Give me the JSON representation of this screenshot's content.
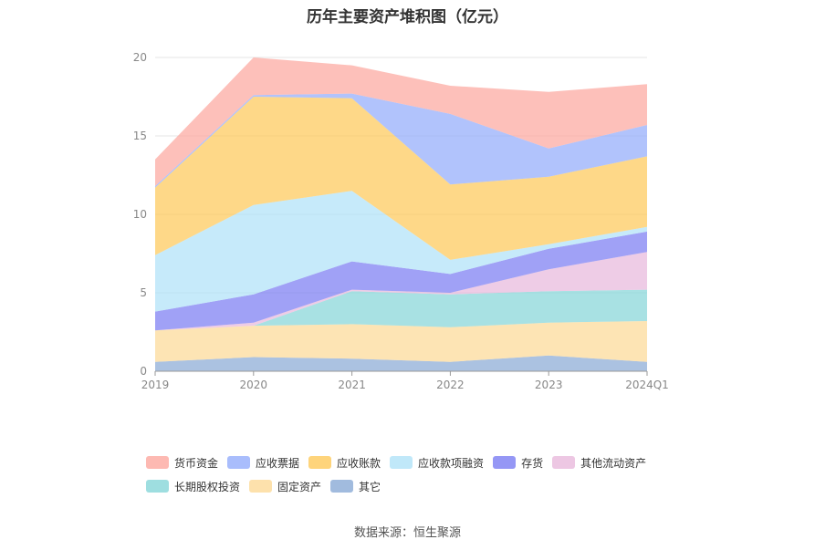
{
  "chart_data": {
    "type": "area",
    "stacked": true,
    "title": "历年主要资产堆积图（亿元）",
    "x": [
      "2019",
      "2020",
      "2021",
      "2022",
      "2023",
      "2024Q1"
    ],
    "ylim": [
      0,
      20
    ],
    "yticks": [
      0,
      5,
      10,
      15,
      20
    ],
    "grid": true,
    "legend_position": "bottom",
    "series": [
      {
        "name": "其它",
        "color": "#8aaad6",
        "values": [
          0.6,
          0.9,
          0.8,
          0.6,
          1.0,
          0.6
        ]
      },
      {
        "name": "固定资产",
        "color": "#fcd997",
        "values": [
          2.0,
          2.0,
          2.2,
          2.2,
          2.1,
          2.6
        ]
      },
      {
        "name": "长期股权投资",
        "color": "#86d6d8",
        "values": [
          0.0,
          0.0,
          2.1,
          2.1,
          2.0,
          2.0
        ]
      },
      {
        "name": "其他流动资产",
        "color": "#e8b9dc",
        "values": [
          0.0,
          0.2,
          0.1,
          0.1,
          1.4,
          2.4
        ]
      },
      {
        "name": "存货",
        "color": "#7b7df2",
        "values": [
          1.2,
          1.8,
          1.8,
          1.2,
          1.3,
          1.3
        ]
      },
      {
        "name": "应收款项融资",
        "color": "#b0e2f8",
        "values": [
          3.6,
          5.7,
          4.5,
          0.9,
          0.3,
          0.3
        ]
      },
      {
        "name": "应收账款",
        "color": "#fec95a",
        "values": [
          4.3,
          6.9,
          5.9,
          4.8,
          4.3,
          4.5
        ]
      },
      {
        "name": "应收票据",
        "color": "#93acfb",
        "values": [
          0.1,
          0.1,
          0.3,
          4.5,
          1.8,
          2.0
        ]
      },
      {
        "name": "货币资金",
        "color": "#fca79f",
        "values": [
          1.7,
          2.4,
          1.8,
          1.8,
          3.6,
          2.6
        ]
      }
    ]
  },
  "legend_order": [
    "货币资金",
    "应收票据",
    "应收账款",
    "应收款项融资",
    "存货",
    "其他流动资产",
    "长期股权投资",
    "固定资产",
    "其它"
  ],
  "source": "数据来源：恒生聚源"
}
